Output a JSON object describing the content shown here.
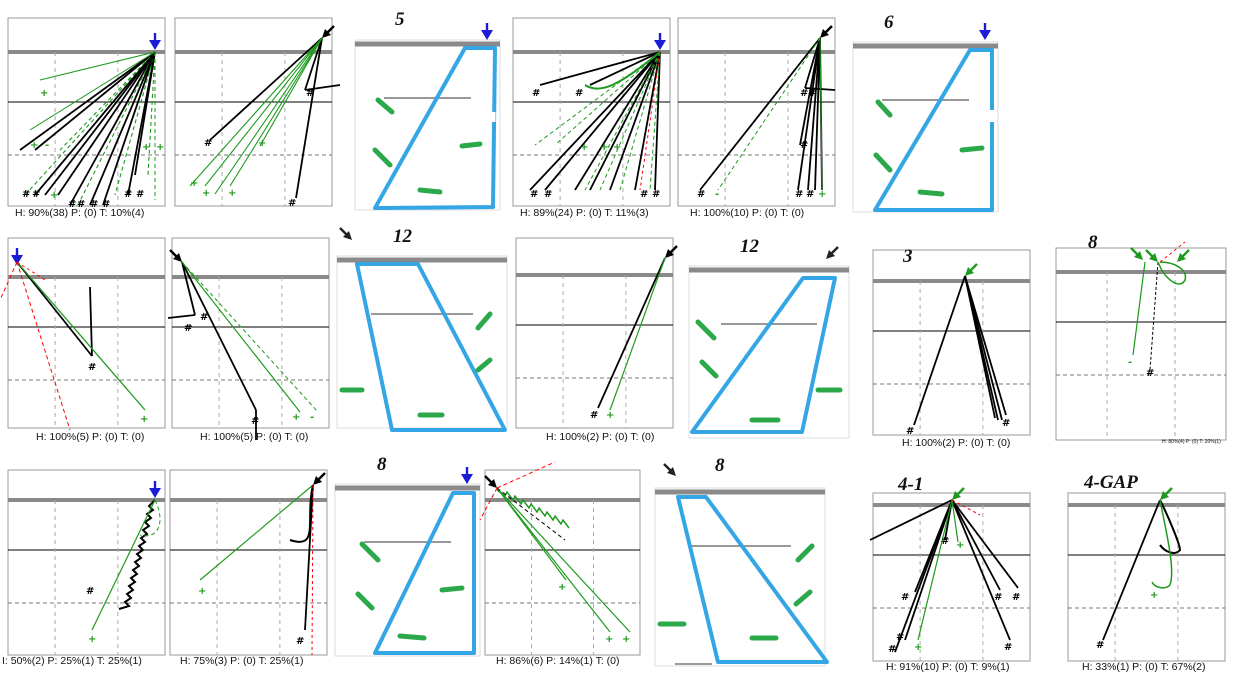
{
  "colors": {
    "hit": "#000000",
    "complete": "#1e9a1e",
    "incomplete": "#1e9a1e",
    "route": "#ff0000",
    "ball": "#1c1cd6",
    "los": "#8a8a8a",
    "zone": "#34a6e6",
    "zone_player": "#2ba84a"
  },
  "hit_mark": "#",
  "complete_mark": "+",
  "incomplete_mark": "-",
  "panels": [
    {
      "stat": "H: 90%(38)  P: (0)  T: 10%(4)"
    },
    {
      "stat": ""
    },
    {
      "label": "5"
    },
    {
      "stat": "H: 89%(24)  P: (0)  T: 11%(3)"
    },
    {
      "stat": "H: 100%(10)  P: (0)  T: (0)"
    },
    {
      "label": "6"
    },
    {
      "stat": "H: 100%(5)  P: (0)  T: (0)"
    },
    {
      "stat": "H: 100%(5)  P: (0)  T: (0)"
    },
    {
      "label": "12"
    },
    {
      "stat": "H: 100%(2)  P: (0)  T: (0)"
    },
    {
      "label": "12"
    },
    {
      "label": "3",
      "stat": "H: 100%(2)  P: (0)  T: (0)"
    },
    {
      "label": "8",
      "stat": "H: 80%(4)  P: (0)  T: 20%(1)"
    },
    {
      "stat": "I: 50%(2)  P: 25%(1)  T: 25%(1)"
    },
    {
      "stat": "H: 75%(3)  P: (0)  T: 25%(1)"
    },
    {
      "label": "8"
    },
    {
      "stat": "H: 86%(6)  P: 14%(1)  T: (0)"
    },
    {
      "label": "8"
    },
    {
      "label": "4-1",
      "stat": "H: 91%(10)  P: (0)  T: 9%(1)"
    },
    {
      "label": "4-GAP",
      "stat": "H: 33%(1)  P: (0)  T: 67%(2)"
    }
  ]
}
